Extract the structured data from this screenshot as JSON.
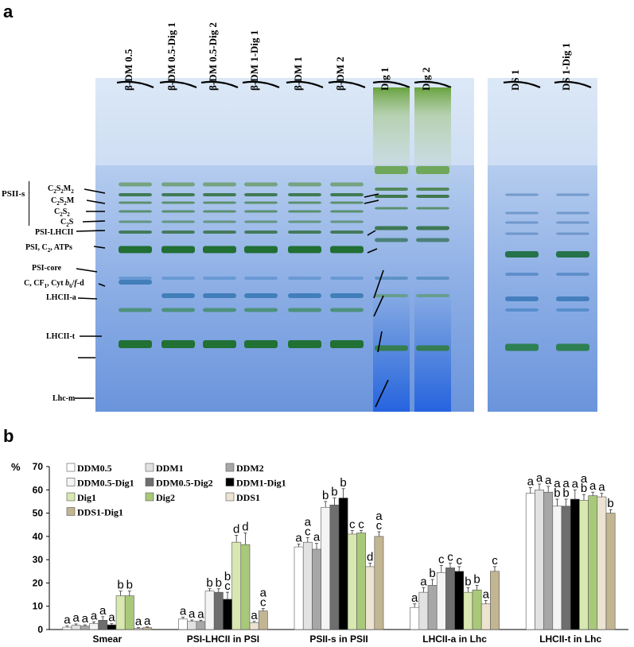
{
  "panel_a": {
    "label": "a",
    "lanes": [
      "β-DM 0.5",
      "β-DM 0.5-Dig 1",
      "β-DM 0.5-Dig 2",
      "β-DM 1-Dig 1",
      "β-DM 1",
      "β-DM 2",
      "Dig 1",
      "Dig 2",
      "DS 1",
      "DS 1-Dig 1"
    ],
    "group_label": "PSII-s",
    "bands": {
      "c2s2m2": {
        "base": "C",
        "s1": "2",
        "mid": "S",
        "s2": "2",
        "tail": "M",
        "s3": "2"
      },
      "c2s2m": {
        "base": "C",
        "s1": "2",
        "mid": "S",
        "s2": "2",
        "tail": "M"
      },
      "c2s2": {
        "base": "C",
        "s1": "2",
        "mid": "S",
        "s2": "2"
      },
      "c2s": {
        "base": "C",
        "s1": "2",
        "mid": "S"
      },
      "psi_lhcii": "PSI-LHCII",
      "psi_c2": {
        "pre": "PSI, C",
        "sub": "2",
        "post": ", ATPs"
      },
      "psi_core": "PSI-core",
      "cyt": {
        "pre": "C, CF",
        "sub1": "1",
        "mid": ", Cyt ",
        "b": "b",
        "sub2": "6",
        "post": "/",
        "f": "f",
        "end": "-d"
      },
      "lhcii_a": "LHCII-a",
      "lhcii_t": "LHCII-t",
      "lhc_m": "Lhc-m"
    }
  },
  "panel_b": {
    "label": "b"
  },
  "chart_data": {
    "type": "bar",
    "ylabel": "%",
    "ylim": [
      0,
      70
    ],
    "yticks": [
      0,
      10,
      20,
      30,
      40,
      50,
      60,
      70
    ],
    "categories": [
      "Smear",
      "PSI-LHCII in PSI",
      "PSII-s in PSII",
      "LHCII-a in Lhc",
      "LHCII-t in Lhc"
    ],
    "series": [
      {
        "name": "DDM0.5",
        "color": "#ffffff",
        "values": [
          1,
          4.5,
          35.5,
          9.5,
          58.5
        ],
        "errors": [
          0.5,
          0.8,
          1.2,
          1.5,
          2.5
        ],
        "letters": [
          "a",
          "a",
          "a",
          "a",
          "a"
        ]
      },
      {
        "name": "DDM1",
        "color": "#e2e2e2",
        "values": [
          1.8,
          3.5,
          37.5,
          16,
          60
        ],
        "errors": [
          0.6,
          0.6,
          2,
          2,
          2.5
        ],
        "letters": [
          "a",
          "a",
          "a\nc",
          "a",
          "a"
        ]
      },
      {
        "name": "DDM2",
        "color": "#a7a7a7",
        "values": [
          1.5,
          3.5,
          34.5,
          19,
          59
        ],
        "errors": [
          0.5,
          0.5,
          2.5,
          2.5,
          2.5
        ],
        "letters": [
          "a",
          "a",
          "a",
          "b",
          "a"
        ]
      },
      {
        "name": "DDM0.5-Dig1",
        "color": "#f4f4f4",
        "values": [
          2.5,
          16.5,
          52.5,
          24.5,
          53
        ],
        "errors": [
          0.8,
          1,
          2.5,
          3,
          3
        ],
        "letters": [
          "a",
          "b",
          "b",
          "c",
          "a\nb"
        ]
      },
      {
        "name": "DDM0.5-Dig2",
        "color": "#6e6e6e",
        "values": [
          4,
          16,
          53.5,
          26.5,
          53
        ],
        "errors": [
          1.5,
          1.5,
          3,
          2,
          3
        ],
        "letters": [
          "a",
          "b",
          "b",
          "c",
          "a\nb"
        ]
      },
      {
        "name": "DDM1-Dig1",
        "color": "#000000",
        "values": [
          2,
          13,
          56.5,
          25,
          56
        ],
        "errors": [
          0.5,
          3,
          4,
          2,
          4
        ],
        "letters": [
          "a",
          "b\nc",
          "b",
          "c",
          "a"
        ]
      },
      {
        "name": "Dig1",
        "color": "#d8e8b0",
        "values": [
          14.5,
          37.5,
          41,
          16,
          55.5
        ],
        "errors": [
          2,
          3,
          1.5,
          2,
          2.5
        ],
        "letters": [
          "b",
          "d",
          "c",
          "b",
          "a\nb"
        ]
      },
      {
        "name": "Dig2",
        "color": "#a9c97a",
        "values": [
          14.5,
          36.5,
          41.5,
          17,
          57.5
        ],
        "errors": [
          2,
          5,
          1,
          2,
          1.5
        ],
        "letters": [
          "b",
          "d",
          "c",
          "b",
          "a"
        ]
      },
      {
        "name": "DDS1",
        "color": "#ece3d1",
        "values": [
          0.5,
          3,
          27,
          11,
          57
        ],
        "errors": [
          0.3,
          0.5,
          1.5,
          1.5,
          1.5
        ],
        "letters": [
          "a",
          "a",
          "d",
          "a",
          "a"
        ]
      },
      {
        "name": "DDS1-Dig1",
        "color": "#c2b592",
        "values": [
          0.8,
          8,
          40,
          25,
          50
        ],
        "errors": [
          0.3,
          1,
          2,
          2,
          1.5
        ],
        "letters": [
          "a",
          "a\nc",
          "a\nc",
          "c",
          "b"
        ]
      }
    ]
  }
}
